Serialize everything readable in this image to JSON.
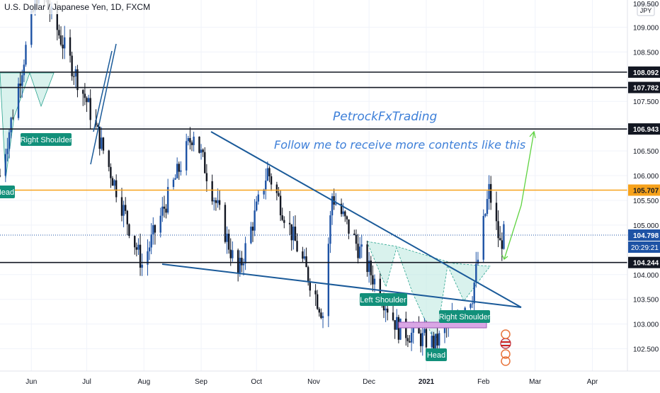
{
  "header": {
    "title": "U.S. Dollar / Japanese Yen, 1D, FXCM"
  },
  "price_axis": {
    "currency": "JPY",
    "ticks": [
      "109.000",
      "108.500",
      "107.500",
      "107.000",
      "106.500",
      "106.000",
      "105.500",
      "105.000",
      "104.000",
      "103.500",
      "103.000",
      "102.500"
    ],
    "top_partial": "109.500"
  },
  "time_axis": {
    "labels": [
      "Jun",
      "Jul",
      "Aug",
      "Sep",
      "Oct",
      "Nov",
      "Dec",
      "2021",
      "Feb",
      "Mar",
      "Apr"
    ]
  },
  "levels": [
    {
      "value": "108.092",
      "color": "#131722"
    },
    {
      "value": "107.782",
      "color": "#131722"
    },
    {
      "value": "106.943",
      "color": "#131722"
    },
    {
      "value": "105.707",
      "color": "#f7a21b"
    },
    {
      "value": "104.244",
      "color": "#131722"
    }
  ],
  "last_price": {
    "value": "104.798",
    "countdown": "20:29:21",
    "color": "#1e53a5"
  },
  "annotations": {
    "author": "PetrockFxTrading",
    "tagline": "Follow me to receive more contents like this",
    "labels": [
      "Right Shoulder",
      "Head",
      "Left Shoulder",
      "Right Shoulder",
      "Head"
    ]
  },
  "colors": {
    "up": "#1e53a5",
    "down": "#131722",
    "trendline": "#1a5a99",
    "target_arrow": "#5fd341",
    "pattern_fill": "#b9e8df",
    "label_bg": "#12907a",
    "neckline_box": "#d9a6e5"
  },
  "chart_data": {
    "type": "candlestick",
    "title": "U.S. Dollar / Japanese Yen, 1D, FXCM",
    "instrument": "USDJPY",
    "timeframe": "1D",
    "x_range": [
      "2020-05-15",
      "2021-04-20"
    ],
    "y_range": [
      102.05,
      109.55
    ],
    "horizontal_levels": [
      108.092,
      107.782,
      106.943,
      105.707,
      104.244
    ],
    "last_price": 104.798,
    "key_points": [
      {
        "date": "2020-05-15",
        "price": 106.0
      },
      {
        "date": "2020-06-05",
        "price": 109.85
      },
      {
        "date": "2020-07-01",
        "price": 107.5
      },
      {
        "date": "2020-07-31",
        "price": 104.2
      },
      {
        "date": "2020-08-28",
        "price": 106.9
      },
      {
        "date": "2020-09-21",
        "price": 104.0
      },
      {
        "date": "2020-10-07",
        "price": 106.1
      },
      {
        "date": "2020-11-06",
        "price": 103.2
      },
      {
        "date": "2020-11-11",
        "price": 105.6
      },
      {
        "date": "2020-12-17",
        "price": 102.9
      },
      {
        "date": "2021-01-06",
        "price": 102.6
      },
      {
        "date": "2021-01-26",
        "price": 103.6
      },
      {
        "date": "2021-02-04",
        "price": 105.7
      },
      {
        "date": "2021-02-10",
        "price": 104.6
      },
      {
        "date": "2021-02-12",
        "price": 104.8
      }
    ],
    "y_ticks": [
      109.0,
      108.5,
      107.5,
      107.0,
      106.5,
      106.0,
      105.5,
      105.0,
      104.0,
      103.5,
      103.0,
      102.5
    ],
    "x_tick_labels": [
      "Jun",
      "Jul",
      "Aug",
      "Sep",
      "Oct",
      "Nov",
      "Dec",
      "2021",
      "Feb",
      "Mar",
      "Apr"
    ]
  }
}
